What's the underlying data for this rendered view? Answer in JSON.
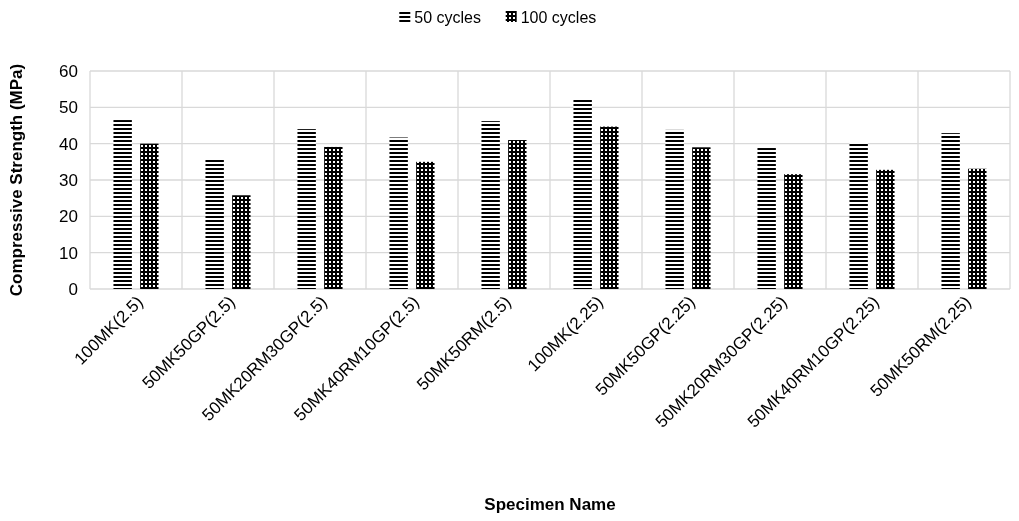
{
  "chart_data": {
    "type": "bar",
    "xlabel": "Specimen Name",
    "ylabel": "Compressive Strength (MPa)",
    "categories": [
      "100MK(2.5)",
      "50MK50GP(2.5)",
      "50MK20RM30GP(2.5)",
      "50MK40RM10GP(2.5)",
      "50MK50RM(2.5)",
      "100MK(2.25)",
      "50MK50GP(2.25)",
      "50MK20RM30GP(2.25)",
      "50MK40RM10GP(2.25)",
      "50MK50RM(2.25)"
    ],
    "series": [
      {
        "name": "50 cycles",
        "color": "#000000",
        "values": [
          46.5,
          35.9,
          44.0,
          41.7,
          46.2,
          52.4,
          43.8,
          38.8,
          40.3,
          42.9
        ]
      },
      {
        "name": "100 cycles",
        "color": "#000000",
        "values": [
          40.0,
          25.8,
          39.1,
          35.0,
          41.0,
          44.7,
          39.0,
          31.6,
          32.8,
          33.1
        ]
      }
    ],
    "ylim": [
      0,
      60
    ],
    "yticks": [
      0,
      10,
      20,
      30,
      40,
      50,
      60
    ],
    "grid": true,
    "legend": "top"
  }
}
